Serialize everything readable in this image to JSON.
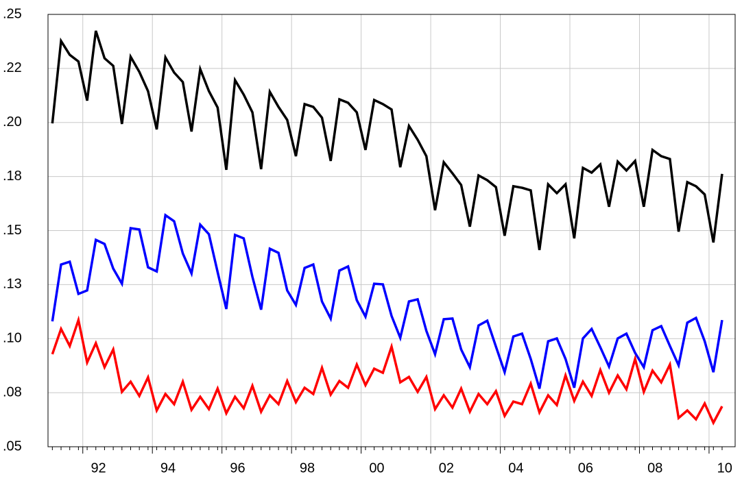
{
  "chart_data": {
    "type": "line",
    "x": [
      1991.125,
      1991.375,
      1991.625,
      1991.875,
      1992.125,
      1992.375,
      1992.625,
      1992.875,
      1993.125,
      1993.375,
      1993.625,
      1993.875,
      1994.125,
      1994.375,
      1994.625,
      1994.875,
      1995.125,
      1995.375,
      1995.625,
      1995.875,
      1996.125,
      1996.375,
      1996.625,
      1996.875,
      1997.125,
      1997.375,
      1997.625,
      1997.875,
      1998.125,
      1998.375,
      1998.625,
      1998.875,
      1999.125,
      1999.375,
      1999.625,
      1999.875,
      2000.125,
      2000.375,
      2000.625,
      2000.875,
      2001.125,
      2001.375,
      2001.625,
      2001.875,
      2002.125,
      2002.375,
      2002.625,
      2002.875,
      2003.125,
      2003.375,
      2003.625,
      2003.875,
      2004.125,
      2004.375,
      2004.625,
      2004.875,
      2005.125,
      2005.375,
      2005.625,
      2005.875,
      2006.125,
      2006.375,
      2006.625,
      2006.875,
      2007.125,
      2007.375,
      2007.625,
      2007.875,
      2008.125,
      2008.375,
      2008.625,
      2008.875,
      2009.125,
      2009.375,
      2009.625,
      2009.875,
      2010.125,
      2010.375
    ],
    "series": [
      {
        "color": "#000000",
        "values": [
          0.1996,
          0.2377,
          0.2313,
          0.2282,
          0.2101,
          0.2424,
          0.2297,
          0.2262,
          0.1993,
          0.2304,
          0.2234,
          0.2145,
          0.1968,
          0.2301,
          0.2231,
          0.2187,
          0.1958,
          0.2247,
          0.2145,
          0.2069,
          0.1781,
          0.2196,
          0.2129,
          0.2047,
          0.1784,
          0.2142,
          0.2072,
          0.2012,
          0.1844,
          0.2085,
          0.2072,
          0.2022,
          0.1822,
          0.2107,
          0.2091,
          0.2047,
          0.1873,
          0.2104,
          0.2085,
          0.206,
          0.1793,
          0.1984,
          0.192,
          0.1844,
          0.1594,
          0.1816,
          0.1765,
          0.1711,
          0.1518,
          0.1755,
          0.1733,
          0.1701,
          0.1476,
          0.1705,
          0.1698,
          0.1686,
          0.141,
          0.1714,
          0.1673,
          0.1714,
          0.1464,
          0.179,
          0.1768,
          0.1806,
          0.161,
          0.1819,
          0.1778,
          0.1822,
          0.161,
          0.1873,
          0.1844,
          0.1831,
          0.1495,
          0.1724,
          0.1705,
          0.1667,
          0.1445,
          0.1762
        ]
      },
      {
        "color": "#0000ff",
        "values": [
          0.108,
          0.1343,
          0.1356,
          0.1207,
          0.1223,
          0.1457,
          0.1438,
          0.1324,
          0.1254,
          0.1511,
          0.1505,
          0.133,
          0.1311,
          0.1571,
          0.1543,
          0.1394,
          0.1302,
          0.1527,
          0.1483,
          0.1308,
          0.1137,
          0.148,
          0.1464,
          0.1286,
          0.1134,
          0.1416,
          0.1397,
          0.1223,
          0.1156,
          0.1327,
          0.1343,
          0.1172,
          0.1093,
          0.1315,
          0.1334,
          0.1178,
          0.1102,
          0.1254,
          0.1251,
          0.1105,
          0.1004,
          0.1172,
          0.1182,
          0.1036,
          0.0928,
          0.109,
          0.1093,
          0.095,
          0.0868,
          0.1061,
          0.1083,
          0.0963,
          0.0845,
          0.101,
          0.1023,
          0.0906,
          0.0769,
          0.0988,
          0.1001,
          0.0906,
          0.0773,
          0.1001,
          0.1045,
          0.096,
          0.0871,
          0.1001,
          0.1023,
          0.0934,
          0.0868,
          0.1039,
          0.1058,
          0.0966,
          0.0877,
          0.1074,
          0.1096,
          0.0988,
          0.0845,
          0.1086
        ]
      },
      {
        "color": "#ff0000",
        "values": [
          0.0928,
          0.1045,
          0.0966,
          0.1086,
          0.089,
          0.0979,
          0.0868,
          0.095,
          0.0754,
          0.0801,
          0.0735,
          0.0821,
          0.0668,
          0.0744,
          0.0697,
          0.0801,
          0.0671,
          0.0731,
          0.0674,
          0.0769,
          0.0655,
          0.0731,
          0.0678,
          0.0782,
          0.0662,
          0.0738,
          0.0697,
          0.0804,
          0.0706,
          0.0773,
          0.0744,
          0.0865,
          0.0741,
          0.0804,
          0.0773,
          0.088,
          0.0785,
          0.0861,
          0.0842,
          0.0963,
          0.0798,
          0.0823,
          0.0754,
          0.0823,
          0.0674,
          0.0738,
          0.0681,
          0.0769,
          0.0662,
          0.0744,
          0.0697,
          0.0757,
          0.0643,
          0.0709,
          0.0697,
          0.0792,
          0.0659,
          0.0738,
          0.0693,
          0.083,
          0.0712,
          0.0801,
          0.0735,
          0.0855,
          0.075,
          0.083,
          0.0766,
          0.0906,
          0.0754,
          0.0852,
          0.0798,
          0.088,
          0.0633,
          0.0668,
          0.0627,
          0.07,
          0.0611,
          0.0687
        ]
      }
    ],
    "xlim": [
      1991,
      2010.75
    ],
    "xticks": [
      {
        "value": 1992,
        "label": "92"
      },
      {
        "value": 1994,
        "label": "94"
      },
      {
        "value": 1996,
        "label": "96"
      },
      {
        "value": 1998,
        "label": "98"
      },
      {
        "value": 2000,
        "label": "00"
      },
      {
        "value": 2002,
        "label": "02"
      },
      {
        "value": 2004,
        "label": "04"
      },
      {
        "value": 2006,
        "label": "06"
      },
      {
        "value": 2008,
        "label": "08"
      },
      {
        "value": 2010,
        "label": "10"
      }
    ],
    "ylim": [
      0.05,
      0.25
    ],
    "yticks": [
      {
        "value": 0.05,
        "label": ".05"
      },
      {
        "value": 0.075,
        "label": ".08"
      },
      {
        "value": 0.1,
        "label": ".10"
      },
      {
        "value": 0.125,
        "label": ".13"
      },
      {
        "value": 0.15,
        "label": ".15"
      },
      {
        "value": 0.175,
        "label": ".18"
      },
      {
        "value": 0.2,
        "label": ".20"
      },
      {
        "value": 0.225,
        "label": ".22"
      },
      {
        "value": 0.25,
        "label": ".25"
      }
    ],
    "grid": true
  }
}
